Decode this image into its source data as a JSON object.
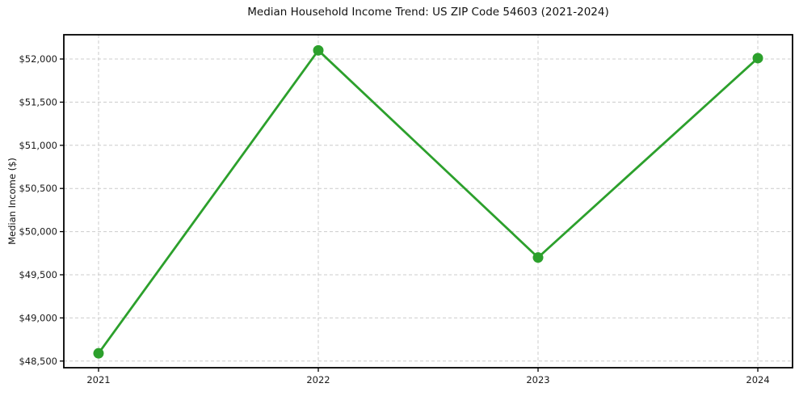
{
  "chart_data": {
    "type": "line",
    "title": "Median Household Income Trend: US ZIP Code 54603 (2021-2024)",
    "xlabel": "",
    "ylabel": "Median Income ($)",
    "categories": [
      "2021",
      "2022",
      "2023",
      "2024"
    ],
    "x": [
      2021,
      2022,
      2023,
      2024
    ],
    "series": [
      {
        "values": [
          48590,
          52100,
          49700,
          52010
        ],
        "color": "#2ca02c",
        "marker": "circle",
        "line_width": 2.8,
        "marker_radius": 6.5
      }
    ],
    "y_ticks": [
      48500,
      49000,
      49500,
      50000,
      50500,
      51000,
      51500,
      52000
    ],
    "y_tick_labels": [
      "$48,500",
      "$49,000",
      "$49,500",
      "$50,000",
      "$50,500",
      "$51,000",
      "$51,500",
      "$52,000"
    ],
    "xlim": [
      2020.842,
      2024.158
    ],
    "ylim": [
      48423,
      52281
    ],
    "grid": {
      "show": true,
      "style": "dashed",
      "color": "#cccccc",
      "axes": "both"
    },
    "legend": {
      "show": false
    },
    "axis_box_color": "#000000",
    "tick_color": "#000000"
  }
}
